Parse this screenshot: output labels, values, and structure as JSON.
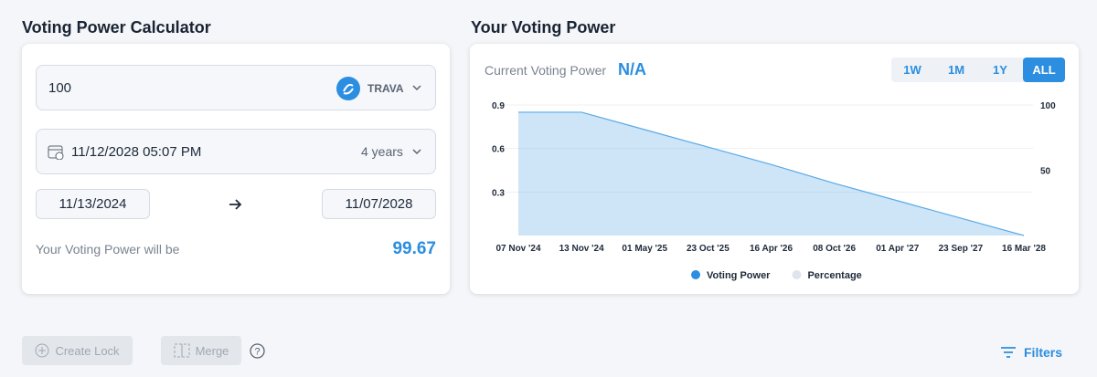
{
  "calculator": {
    "title": "Voting Power Calculator",
    "amount": "100",
    "token": "TRAVA",
    "lock_until": "11/12/2028 05:07 PM",
    "duration": "4 years",
    "start_date": "11/13/2024",
    "end_date": "11/07/2028",
    "result_label": "Your Voting Power will be",
    "result_value": "99.67"
  },
  "voting_power_panel": {
    "title": "Your Voting Power",
    "current_label": "Current Voting Power",
    "current_value": "N/A",
    "ranges": [
      "1W",
      "1M",
      "1Y",
      "ALL"
    ],
    "active_range": "ALL"
  },
  "chart_data": {
    "type": "area",
    "categories": [
      "07 Nov '24",
      "13 Nov '24",
      "01 May '25",
      "23 Oct '25",
      "16 Apr '26",
      "08 Oct '26",
      "01 Apr '27",
      "23 Sep '27",
      "16 Mar '28"
    ],
    "series": [
      {
        "name": "Voting Power",
        "color": "#5aaae6",
        "values": [
          0.85,
          0.85,
          0.73,
          0.61,
          0.49,
          0.36,
          0.24,
          0.12,
          0.0
        ]
      },
      {
        "name": "Percentage",
        "color": "#dfe3ec",
        "axis": "y2",
        "values": [
          null,
          null,
          null,
          null,
          null,
          null,
          null,
          null,
          null
        ]
      }
    ],
    "ylim": [
      0,
      0.9
    ],
    "yticks": [
      0.3,
      0.6,
      0.9
    ],
    "y2lim": [
      0,
      100
    ],
    "y2ticks": [
      50,
      100
    ],
    "grid": true
  },
  "actions": {
    "create_lock": "Create Lock",
    "merge": "Merge",
    "filters": "Filters"
  }
}
